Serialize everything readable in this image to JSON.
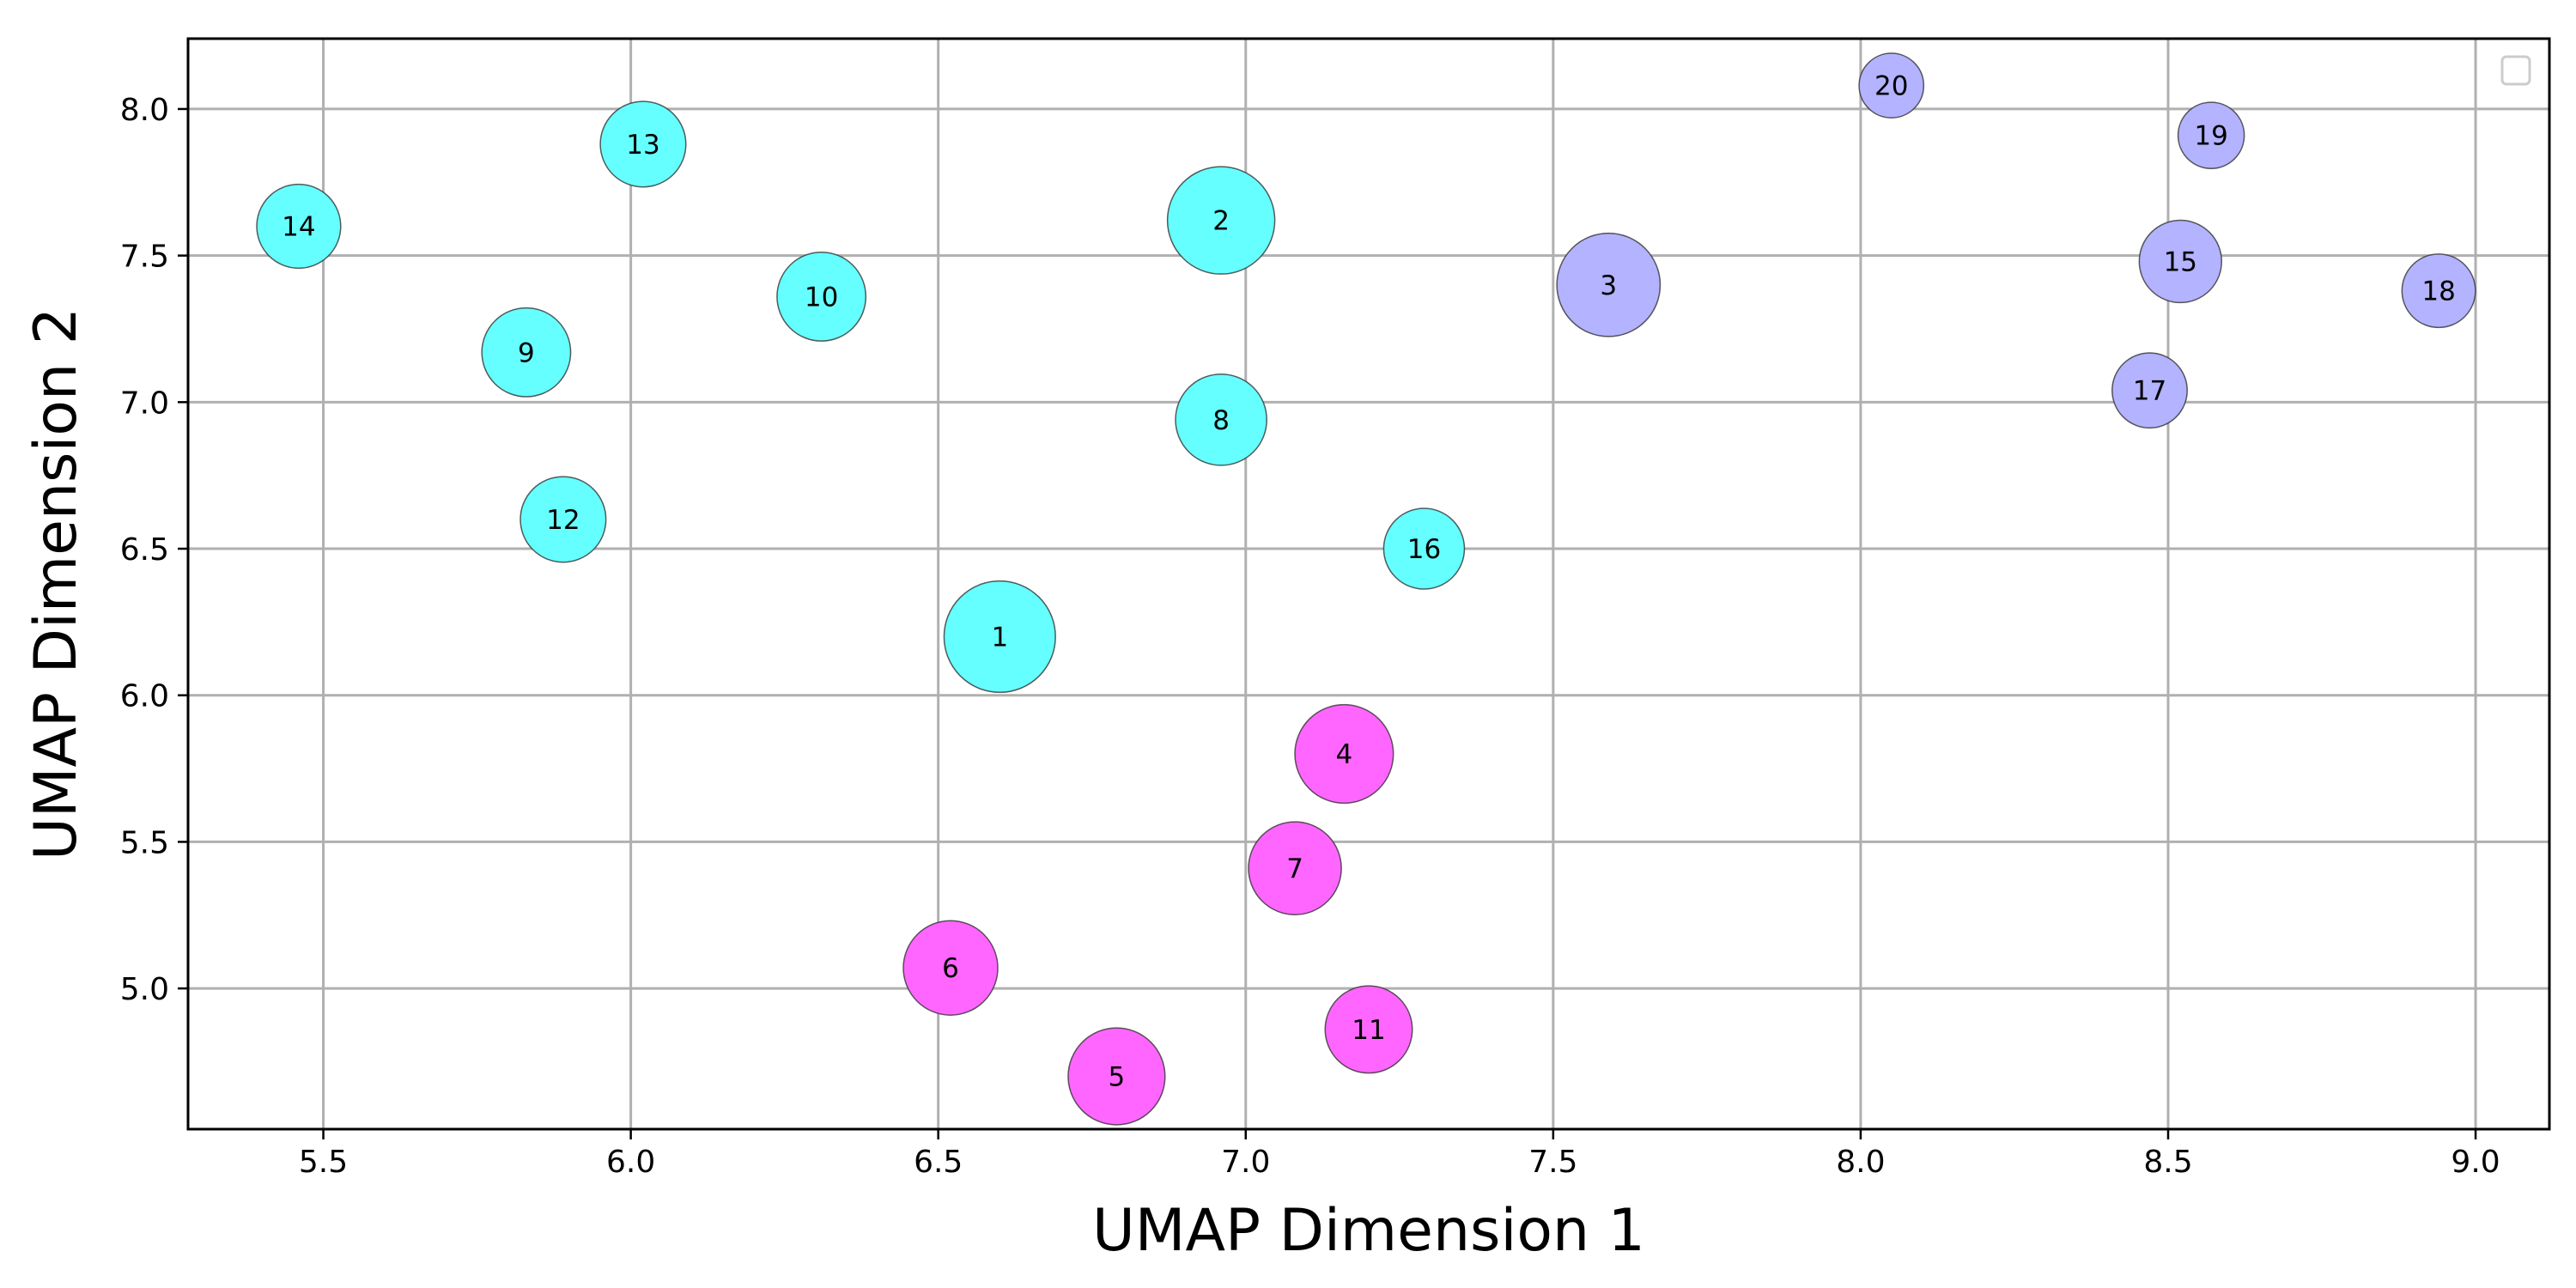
{
  "chart_data": {
    "type": "scatter",
    "title": "",
    "xlabel": "UMAP Dimension 1",
    "ylabel": "UMAP Dimension 2",
    "xlim": [
      5.28,
      9.12
    ],
    "ylim": [
      4.52,
      8.24
    ],
    "xticks": [
      5.5,
      6.0,
      6.5,
      7.0,
      7.5,
      8.0,
      8.5,
      9.0
    ],
    "yticks": [
      5.0,
      5.5,
      6.0,
      6.5,
      7.0,
      7.5,
      8.0
    ],
    "xtick_labels": [
      "5.5",
      "6.0",
      "6.5",
      "7.0",
      "7.5",
      "8.0",
      "8.5",
      "9.0"
    ],
    "ytick_labels": [
      "5.0",
      "5.5",
      "6.0",
      "6.5",
      "7.0",
      "7.5",
      "8.0"
    ],
    "grid": true,
    "legend": {
      "placement": "top-right",
      "entries": []
    },
    "colors": {
      "cyan": "#66ffff",
      "magenta": "#ff66ff",
      "lavender": "#b3b3ff"
    },
    "points": [
      {
        "label": "1",
        "x": 6.6,
        "y": 6.2,
        "size": 1.38,
        "color": "#66ffff"
      },
      {
        "label": "2",
        "x": 6.96,
        "y": 7.62,
        "size": 1.33,
        "color": "#66ffff"
      },
      {
        "label": "3",
        "x": 7.59,
        "y": 7.4,
        "size": 1.28,
        "color": "#b3b3ff"
      },
      {
        "label": "4",
        "x": 7.16,
        "y": 5.8,
        "size": 1.22,
        "color": "#ff66ff"
      },
      {
        "label": "5",
        "x": 6.79,
        "y": 4.7,
        "size": 1.2,
        "color": "#ff66ff"
      },
      {
        "label": "6",
        "x": 6.52,
        "y": 5.07,
        "size": 1.17,
        "color": "#ff66ff"
      },
      {
        "label": "7",
        "x": 7.08,
        "y": 5.41,
        "size": 1.15,
        "color": "#ff66ff"
      },
      {
        "label": "8",
        "x": 6.96,
        "y": 6.94,
        "size": 1.13,
        "color": "#66ffff"
      },
      {
        "label": "9",
        "x": 5.83,
        "y": 7.17,
        "size": 1.1,
        "color": "#66ffff"
      },
      {
        "label": "10",
        "x": 6.31,
        "y": 7.36,
        "size": 1.1,
        "color": "#66ffff"
      },
      {
        "label": "11",
        "x": 7.2,
        "y": 4.86,
        "size": 1.08,
        "color": "#ff66ff"
      },
      {
        "label": "12",
        "x": 5.89,
        "y": 6.6,
        "size": 1.06,
        "color": "#66ffff"
      },
      {
        "label": "13",
        "x": 6.02,
        "y": 7.88,
        "size": 1.06,
        "color": "#66ffff"
      },
      {
        "label": "14",
        "x": 5.46,
        "y": 7.6,
        "size": 1.04,
        "color": "#66ffff"
      },
      {
        "label": "15",
        "x": 8.52,
        "y": 7.48,
        "size": 1.02,
        "color": "#b3b3ff"
      },
      {
        "label": "16",
        "x": 7.29,
        "y": 6.5,
        "size": 1.0,
        "color": "#66ffff"
      },
      {
        "label": "17",
        "x": 8.47,
        "y": 7.04,
        "size": 0.93,
        "color": "#b3b3ff"
      },
      {
        "label": "18",
        "x": 8.94,
        "y": 7.38,
        "size": 0.91,
        "color": "#b3b3ff"
      },
      {
        "label": "19",
        "x": 8.57,
        "y": 7.91,
        "size": 0.82,
        "color": "#b3b3ff"
      },
      {
        "label": "20",
        "x": 8.05,
        "y": 8.08,
        "size": 0.8,
        "color": "#b3b3ff"
      }
    ]
  }
}
